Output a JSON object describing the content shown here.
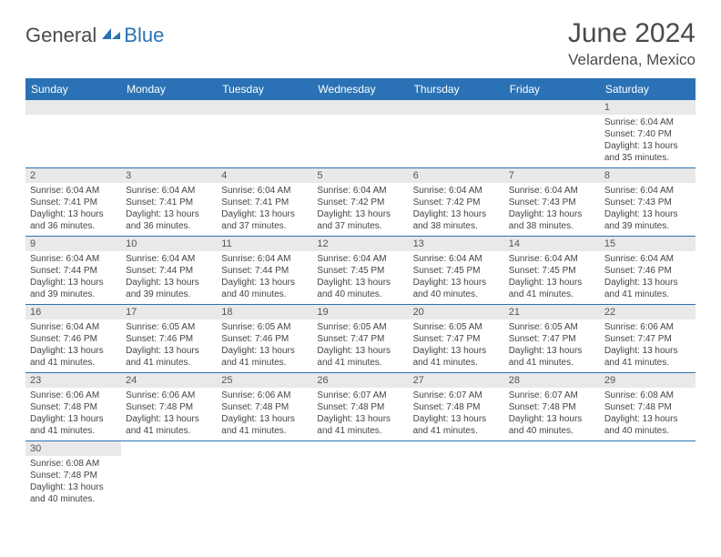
{
  "logo": {
    "part1": "General",
    "part2": "Blue"
  },
  "title": "June 2024",
  "location": "Velardena, Mexico",
  "colors": {
    "header_bg": "#2a72b5",
    "header_text": "#ffffff",
    "daynum_bg": "#e9e9e9",
    "border": "#2a72b5",
    "logo_blue": "#2a72b5",
    "logo_gray": "#4a4a4a"
  },
  "weekdays": [
    "Sunday",
    "Monday",
    "Tuesday",
    "Wednesday",
    "Thursday",
    "Friday",
    "Saturday"
  ],
  "first_day_index": 6,
  "days": [
    {
      "n": 1,
      "sunrise": "6:04 AM",
      "sunset": "7:40 PM",
      "dl_h": 13,
      "dl_m": 35
    },
    {
      "n": 2,
      "sunrise": "6:04 AM",
      "sunset": "7:41 PM",
      "dl_h": 13,
      "dl_m": 36
    },
    {
      "n": 3,
      "sunrise": "6:04 AM",
      "sunset": "7:41 PM",
      "dl_h": 13,
      "dl_m": 36
    },
    {
      "n": 4,
      "sunrise": "6:04 AM",
      "sunset": "7:41 PM",
      "dl_h": 13,
      "dl_m": 37
    },
    {
      "n": 5,
      "sunrise": "6:04 AM",
      "sunset": "7:42 PM",
      "dl_h": 13,
      "dl_m": 37
    },
    {
      "n": 6,
      "sunrise": "6:04 AM",
      "sunset": "7:42 PM",
      "dl_h": 13,
      "dl_m": 38
    },
    {
      "n": 7,
      "sunrise": "6:04 AM",
      "sunset": "7:43 PM",
      "dl_h": 13,
      "dl_m": 38
    },
    {
      "n": 8,
      "sunrise": "6:04 AM",
      "sunset": "7:43 PM",
      "dl_h": 13,
      "dl_m": 39
    },
    {
      "n": 9,
      "sunrise": "6:04 AM",
      "sunset": "7:44 PM",
      "dl_h": 13,
      "dl_m": 39
    },
    {
      "n": 10,
      "sunrise": "6:04 AM",
      "sunset": "7:44 PM",
      "dl_h": 13,
      "dl_m": 39
    },
    {
      "n": 11,
      "sunrise": "6:04 AM",
      "sunset": "7:44 PM",
      "dl_h": 13,
      "dl_m": 40
    },
    {
      "n": 12,
      "sunrise": "6:04 AM",
      "sunset": "7:45 PM",
      "dl_h": 13,
      "dl_m": 40
    },
    {
      "n": 13,
      "sunrise": "6:04 AM",
      "sunset": "7:45 PM",
      "dl_h": 13,
      "dl_m": 40
    },
    {
      "n": 14,
      "sunrise": "6:04 AM",
      "sunset": "7:45 PM",
      "dl_h": 13,
      "dl_m": 41
    },
    {
      "n": 15,
      "sunrise": "6:04 AM",
      "sunset": "7:46 PM",
      "dl_h": 13,
      "dl_m": 41
    },
    {
      "n": 16,
      "sunrise": "6:04 AM",
      "sunset": "7:46 PM",
      "dl_h": 13,
      "dl_m": 41
    },
    {
      "n": 17,
      "sunrise": "6:05 AM",
      "sunset": "7:46 PM",
      "dl_h": 13,
      "dl_m": 41
    },
    {
      "n": 18,
      "sunrise": "6:05 AM",
      "sunset": "7:46 PM",
      "dl_h": 13,
      "dl_m": 41
    },
    {
      "n": 19,
      "sunrise": "6:05 AM",
      "sunset": "7:47 PM",
      "dl_h": 13,
      "dl_m": 41
    },
    {
      "n": 20,
      "sunrise": "6:05 AM",
      "sunset": "7:47 PM",
      "dl_h": 13,
      "dl_m": 41
    },
    {
      "n": 21,
      "sunrise": "6:05 AM",
      "sunset": "7:47 PM",
      "dl_h": 13,
      "dl_m": 41
    },
    {
      "n": 22,
      "sunrise": "6:06 AM",
      "sunset": "7:47 PM",
      "dl_h": 13,
      "dl_m": 41
    },
    {
      "n": 23,
      "sunrise": "6:06 AM",
      "sunset": "7:48 PM",
      "dl_h": 13,
      "dl_m": 41
    },
    {
      "n": 24,
      "sunrise": "6:06 AM",
      "sunset": "7:48 PM",
      "dl_h": 13,
      "dl_m": 41
    },
    {
      "n": 25,
      "sunrise": "6:06 AM",
      "sunset": "7:48 PM",
      "dl_h": 13,
      "dl_m": 41
    },
    {
      "n": 26,
      "sunrise": "6:07 AM",
      "sunset": "7:48 PM",
      "dl_h": 13,
      "dl_m": 41
    },
    {
      "n": 27,
      "sunrise": "6:07 AM",
      "sunset": "7:48 PM",
      "dl_h": 13,
      "dl_m": 41
    },
    {
      "n": 28,
      "sunrise": "6:07 AM",
      "sunset": "7:48 PM",
      "dl_h": 13,
      "dl_m": 40
    },
    {
      "n": 29,
      "sunrise": "6:08 AM",
      "sunset": "7:48 PM",
      "dl_h": 13,
      "dl_m": 40
    },
    {
      "n": 30,
      "sunrise": "6:08 AM",
      "sunset": "7:48 PM",
      "dl_h": 13,
      "dl_m": 40
    }
  ],
  "labels": {
    "sunrise": "Sunrise:",
    "sunset": "Sunset:",
    "daylight": "Daylight:",
    "hours_and": "hours and",
    "minutes": "minutes."
  }
}
